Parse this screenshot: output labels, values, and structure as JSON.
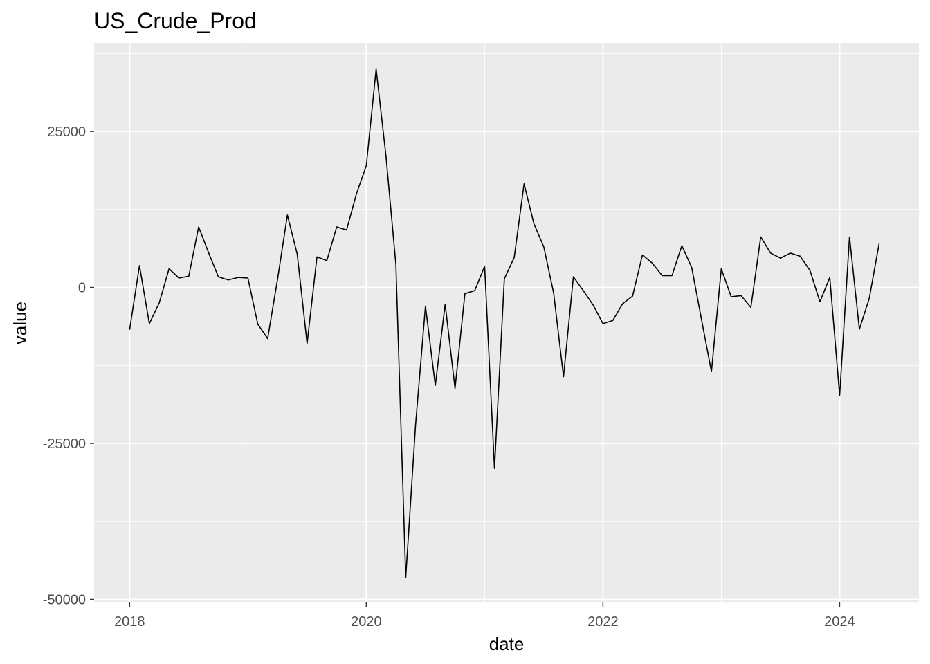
{
  "chart_data": {
    "type": "line",
    "title": "US_Crude_Prod",
    "xlabel": "date",
    "ylabel": "value",
    "x_ticks": [
      {
        "label": "2018",
        "value": 2018.0
      },
      {
        "label": "2020",
        "value": 2020.0
      },
      {
        "label": "2022",
        "value": 2022.0
      },
      {
        "label": "2024",
        "value": 2024.0
      }
    ],
    "y_ticks": [
      {
        "label": "25000",
        "value": 25000
      },
      {
        "label": "0",
        "value": 0
      },
      {
        "label": "-25000",
        "value": -25000
      },
      {
        "label": "-50000",
        "value": -50000
      }
    ],
    "xlim": [
      2017.7,
      2024.67
    ],
    "ylim": [
      -50500,
      39200
    ],
    "grid": true,
    "colors": {
      "panel": "#ebebeb",
      "grid": "#ffffff",
      "line": "#000000",
      "axis_text": "#4d4d4d"
    },
    "series": [
      {
        "x": [
          "2018-01",
          "2018-02",
          "2018-03",
          "2018-04",
          "2018-05",
          "2018-06",
          "2018-07",
          "2018-08",
          "2018-09",
          "2018-10",
          "2018-11",
          "2018-12",
          "2019-01",
          "2019-02",
          "2019-03",
          "2019-04",
          "2019-05",
          "2019-06",
          "2019-07",
          "2019-08",
          "2019-09",
          "2019-10",
          "2019-11",
          "2019-12",
          "2020-01",
          "2020-02",
          "2020-03",
          "2020-04",
          "2020-05",
          "2020-06",
          "2020-07",
          "2020-08",
          "2020-09",
          "2020-10",
          "2020-11",
          "2020-12",
          "2021-01",
          "2021-02",
          "2021-03",
          "2021-04",
          "2021-05",
          "2021-06",
          "2021-07",
          "2021-08",
          "2021-09",
          "2021-10",
          "2021-11",
          "2021-12",
          "2022-01",
          "2022-02",
          "2022-03",
          "2022-04",
          "2022-05",
          "2022-06",
          "2022-07",
          "2022-08",
          "2022-09",
          "2022-10",
          "2022-11",
          "2022-12",
          "2023-01",
          "2023-02",
          "2023-03",
          "2023-04",
          "2023-05",
          "2023-06",
          "2023-07",
          "2023-08",
          "2023-09",
          "2023-10",
          "2023-11",
          "2023-12",
          "2024-01",
          "2024-02",
          "2024-03",
          "2024-04",
          "2024-05"
        ],
        "values": [
          -6800,
          3500,
          -5800,
          -2500,
          3000,
          1500,
          1800,
          9700,
          5600,
          1700,
          1200,
          1600,
          1500,
          -5900,
          -8200,
          1300,
          11600,
          5300,
          -9000,
          4900,
          4300,
          9700,
          9200,
          15000,
          19500,
          35000,
          21000,
          3700,
          -46500,
          -22000,
          -3000,
          -15700,
          -2700,
          -16200,
          -1000,
          -500,
          3400,
          -29000,
          1400,
          4800,
          16600,
          10200,
          6500,
          -900,
          -14300,
          1700,
          -500,
          -2800,
          -5800,
          -5300,
          -2600,
          -1400,
          5200,
          3900,
          1900,
          1900,
          6700,
          3200,
          -5200,
          -13500,
          3000,
          -1500,
          -1300,
          -3200,
          8100,
          5500,
          4700,
          5500,
          5000,
          2700,
          -2300,
          1600,
          -17300,
          8100,
          -6700,
          -1800,
          7000
        ]
      }
    ]
  }
}
